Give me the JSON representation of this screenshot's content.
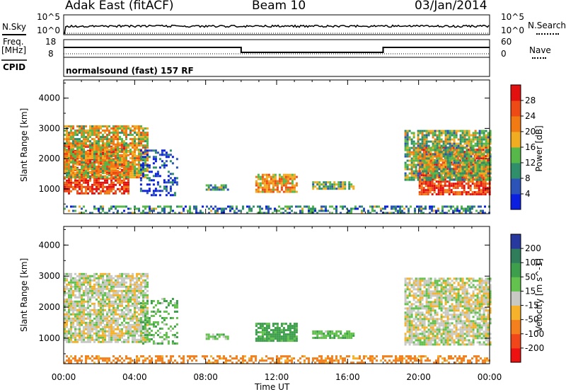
{
  "header": {
    "station": "Adak East (fitACF)",
    "beam": "Beam 10",
    "date": "03/Jan/2014"
  },
  "strip": {
    "nsky_label": "N.Sky",
    "nsky_ticks": [
      "10^5",
      "10^0"
    ],
    "nsearch_label": "N.Search",
    "nsearch_ticks": [
      "10^5",
      "10^0"
    ],
    "freq_label": "Freq.",
    "freq_unit": "[MHz]",
    "freq_ticks": [
      "18",
      "8"
    ],
    "nave_label": "Nave",
    "nave_ticks": [
      "60",
      "0"
    ],
    "cpid_label": "CPID",
    "cpid_text": "normalsound (fast) 157 RF"
  },
  "colors": {
    "power_scale": [
      "#0b1fe0",
      "#2b53b8",
      "#2f8f6a",
      "#55b848",
      "#f0ad22",
      "#f27a12",
      "#ee4a16",
      "#e31010"
    ],
    "velocity_scale": [
      "#ee1111",
      "#f0461a",
      "#f3801c",
      "#f6b22a",
      "#c8c8c4",
      "#63c24d",
      "#3d9f4b",
      "#2f7d5a",
      "#27389f"
    ]
  },
  "chart_data": [
    {
      "type": "heatmap",
      "title": "",
      "ylabel": "Slant Range [km]",
      "xlabel": "",
      "x_ticks": [
        "00:00",
        "04:00",
        "08:00",
        "12:00",
        "16:00",
        "20:00",
        "00:00"
      ],
      "y_ticks": [
        "1000",
        "2000",
        "3000",
        "4000"
      ],
      "xlim_hours": [
        0,
        24
      ],
      "ylim_km": [
        180,
        4600
      ],
      "colorbar": {
        "label": "Power [dB]",
        "ticks": [
          "4",
          "8",
          "12",
          "16",
          "20",
          "24",
          "28"
        ],
        "range": [
          0,
          32
        ]
      },
      "regions": [
        {
          "name": "early-strong",
          "t0": 0.0,
          "t1": 3.7,
          "r0": 850,
          "r1": 2500,
          "level": 0.85
        },
        {
          "name": "early-outer",
          "t0": 0.0,
          "t1": 4.7,
          "r0": 1400,
          "r1": 3100,
          "level": 0.55
        },
        {
          "name": "morning-weak",
          "t0": 4.3,
          "t1": 6.4,
          "r0": 800,
          "r1": 2300,
          "level": 0.12
        },
        {
          "name": "patch-0830",
          "t0": 8.0,
          "t1": 9.2,
          "r0": 950,
          "r1": 1150,
          "level": 0.35
        },
        {
          "name": "patch-1200",
          "t0": 10.8,
          "t1": 13.1,
          "r0": 900,
          "r1": 1500,
          "level": 0.65
        },
        {
          "name": "patch-1500",
          "t0": 14.0,
          "t1": 16.3,
          "r0": 1000,
          "r1": 1250,
          "level": 0.4
        },
        {
          "name": "late-strong",
          "t0": 20.0,
          "t1": 24.0,
          "r0": 800,
          "r1": 2400,
          "level": 0.85
        },
        {
          "name": "late-outer",
          "t0": 19.2,
          "t1": 24.0,
          "r0": 1300,
          "r1": 2950,
          "level": 0.45
        },
        {
          "name": "near-range",
          "t0": 0.0,
          "t1": 24.0,
          "r0": 180,
          "r1": 450,
          "level": 0.3
        }
      ]
    },
    {
      "type": "heatmap",
      "title": "",
      "ylabel": "Slant Range [km]",
      "xlabel": "Time UT",
      "x_ticks": [
        "00:00",
        "04:00",
        "08:00",
        "12:00",
        "16:00",
        "20:00",
        "00:00"
      ],
      "y_ticks": [
        "1000",
        "2000",
        "3000",
        "4000"
      ],
      "xlim_hours": [
        0,
        24
      ],
      "ylim_km": [
        180,
        4600
      ],
      "colorbar": {
        "label": "Velocity [m s^-1]",
        "ticks": [
          "200",
          "100",
          "50",
          "15",
          "-15",
          "-50",
          "-100",
          "-200"
        ],
        "range": [
          -250,
          250
        ]
      },
      "regions": [
        {
          "name": "early-groundscatter",
          "t0": 0.0,
          "t1": 4.7,
          "r0": 850,
          "r1": 3100,
          "velocity": 0
        },
        {
          "name": "morning-weak",
          "t0": 4.3,
          "t1": 6.4,
          "r0": 800,
          "r1": 2300,
          "velocity": 40
        },
        {
          "name": "patch-0830",
          "t0": 8.0,
          "t1": 9.2,
          "r0": 950,
          "r1": 1150,
          "velocity": 40
        },
        {
          "name": "patch-1200",
          "t0": 10.8,
          "t1": 13.1,
          "r0": 900,
          "r1": 1500,
          "velocity": 70
        },
        {
          "name": "patch-1500",
          "t0": 14.0,
          "t1": 16.3,
          "r0": 1000,
          "r1": 1250,
          "velocity": 40
        },
        {
          "name": "late-groundscatter",
          "t0": 19.2,
          "t1": 24.0,
          "r0": 800,
          "r1": 2950,
          "velocity": 0
        },
        {
          "name": "near-range",
          "t0": 0.0,
          "t1": 24.0,
          "r0": 180,
          "r1": 450,
          "velocity": -70
        }
      ]
    }
  ]
}
